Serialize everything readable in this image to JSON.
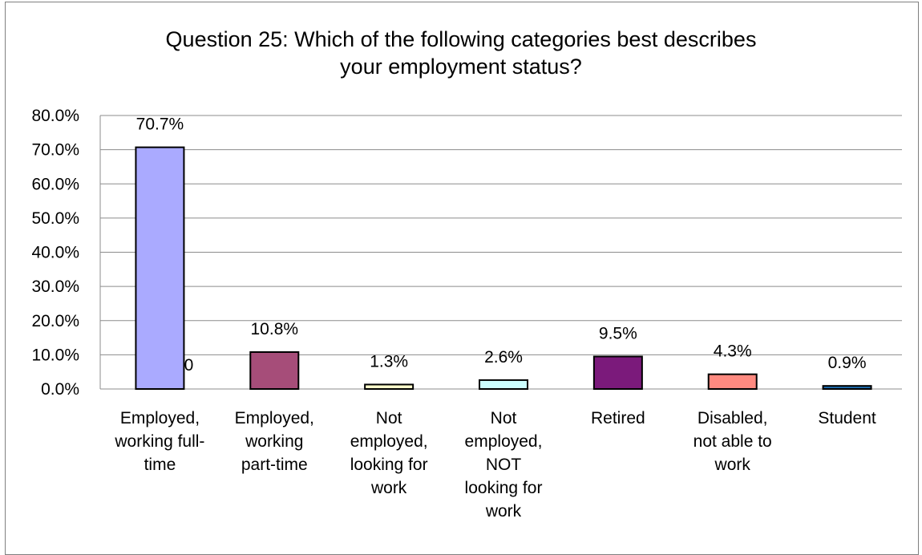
{
  "chart_data": {
    "type": "bar",
    "title_lines": [
      "Question 25: Which of the following categories best describes",
      "your employment status?"
    ],
    "categories": [
      "Employed, working full-time",
      "Employed, working part-time",
      "Not employed, looking for work",
      "Not employed, NOT looking for work",
      "Retired",
      "Disabled, not able to work",
      "Student"
    ],
    "category_lines": [
      [
        "Employed,",
        "working full-",
        "time"
      ],
      [
        "Employed,",
        "working",
        "part-time"
      ],
      [
        "Not",
        "employed,",
        "looking for",
        "work"
      ],
      [
        "Not",
        "employed,",
        "NOT",
        "looking for",
        "work"
      ],
      [
        "Retired"
      ],
      [
        "Disabled,",
        "not able to",
        "work"
      ],
      [
        "Student"
      ]
    ],
    "values": [
      70.7,
      10.8,
      1.3,
      2.6,
      9.5,
      4.3,
      0.9
    ],
    "data_labels": [
      "70.7%",
      "10.8%",
      "1.3%",
      "2.6%",
      "9.5%",
      "4.3%",
      "0.9%"
    ],
    "extra_labels": [
      {
        "category_index": 0,
        "text": "0"
      }
    ],
    "colors": [
      "#aaaaff",
      "#a64d79",
      "#ffffcc",
      "#ccffff",
      "#7b1a7b",
      "#ff8a80",
      "#1f6fb2"
    ],
    "ylim": [
      0,
      80
    ],
    "yticks": [
      "0.0%",
      "10.0%",
      "20.0%",
      "30.0%",
      "40.0%",
      "50.0%",
      "60.0%",
      "70.0%",
      "80.0%"
    ],
    "ytick_values": [
      0,
      10,
      20,
      30,
      40,
      50,
      60,
      70,
      80
    ],
    "grid": true,
    "legend": "none"
  }
}
